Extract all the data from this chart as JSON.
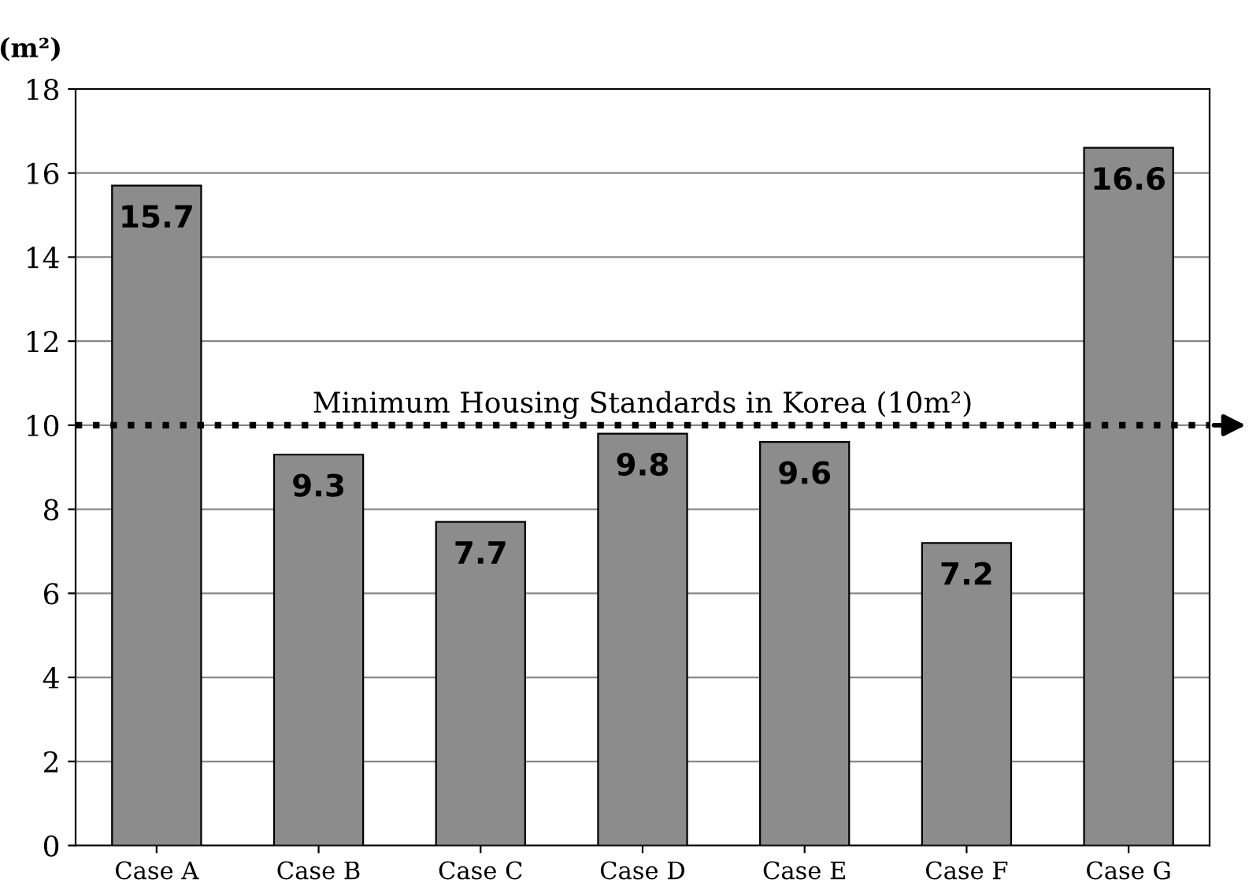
{
  "chart_data": {
    "type": "bar",
    "ylabel": "(m²)",
    "categories": [
      "Case A",
      "Case B",
      "Case C",
      "Case D",
      "Case E",
      "Case F",
      "Case G"
    ],
    "values": [
      15.7,
      9.3,
      7.7,
      9.8,
      9.6,
      7.2,
      16.6
    ],
    "color": "#8c8c8c",
    "ylim": [
      0,
      18
    ],
    "yticks": [
      0,
      2,
      4,
      6,
      8,
      10,
      12,
      14,
      16,
      18
    ],
    "grid": "y",
    "data_labels": true,
    "ref_lines": [
      {
        "axis": "y",
        "value": 10,
        "label": "Minimum Housing Standards in Korea (10m²)",
        "color": "#000000",
        "line_style": "dotted"
      }
    ]
  }
}
